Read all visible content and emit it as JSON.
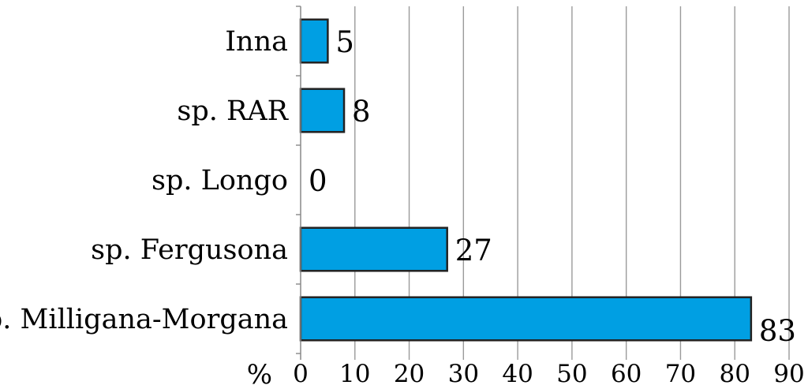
{
  "chart_data": {
    "type": "bar",
    "orientation": "horizontal",
    "categories": [
      "Inna",
      "sp. RAR",
      "sp. Longo",
      "sp. Fergusona",
      "sp. Milligana-Morgana"
    ],
    "values": [
      5,
      8,
      0,
      27,
      83
    ],
    "data_labels": [
      "5",
      "8",
      "0",
      "27",
      "83"
    ],
    "x_unit": "%",
    "xlim": [
      0,
      90
    ],
    "x_ticks": [
      "0",
      "10",
      "20",
      "30",
      "40",
      "50",
      "60",
      "70",
      "80",
      "90"
    ],
    "grid": "vertical",
    "bar_color": "#009fe3",
    "bar_edge_color": "#222222",
    "legend": "none"
  }
}
